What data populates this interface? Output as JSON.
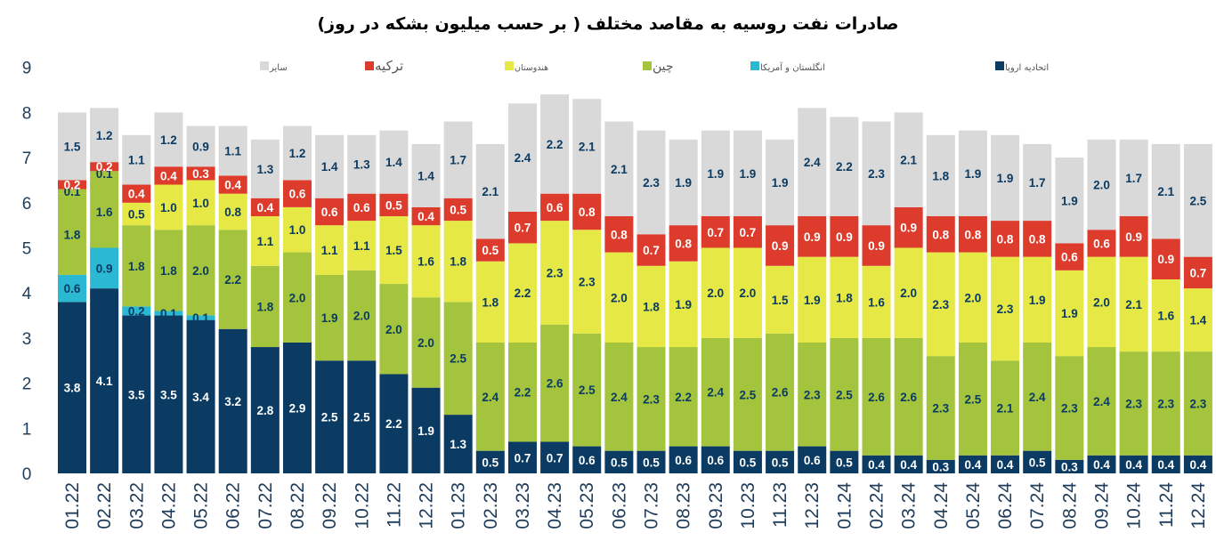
{
  "chart_data": {
    "type": "bar",
    "stacked": true,
    "title": "صادرات نفت روسیه به مقاصد مختلف ( بر حسب میلیون بشکه در روز)",
    "xlabel": "",
    "ylabel": "",
    "ylim": [
      0,
      9
    ],
    "yticks": [
      "0",
      "1",
      "2",
      "3",
      "4",
      "5",
      "6",
      "7",
      "8",
      "9"
    ],
    "grid": false,
    "legend_position": "top",
    "categories": [
      "01.22",
      "02.22",
      "03.22",
      "04.22",
      "05.22",
      "06.22",
      "07.22",
      "08.22",
      "09.22",
      "10.22",
      "11.22",
      "12.22",
      "01.23",
      "02.23",
      "03.23",
      "04.23",
      "05.23",
      "06.23",
      "07.23",
      "08.23",
      "09.23",
      "10.23",
      "11.23",
      "12.23",
      "01.24",
      "02.24",
      "03.24",
      "04.24",
      "05.24",
      "06.24",
      "07.24",
      "08.24",
      "09.24",
      "10.24",
      "11.24",
      "12.24"
    ],
    "series": [
      {
        "name": "اتحادیه اروپا",
        "color": "#0b3b63",
        "label_color": "#ffffff",
        "values": [
          3.8,
          4.1,
          3.5,
          3.5,
          3.4,
          3.2,
          2.8,
          2.9,
          2.5,
          2.5,
          2.2,
          1.9,
          1.3,
          0.5,
          0.7,
          0.7,
          0.6,
          0.5,
          0.5,
          0.6,
          0.6,
          0.5,
          0.5,
          0.6,
          0.5,
          0.4,
          0.4,
          0.3,
          0.4,
          0.4,
          0.5,
          0.3,
          0.4,
          0.4,
          0.4,
          0.4
        ]
      },
      {
        "name": "انگلستان و آمریکا",
        "color": "#2ab8d3",
        "label_color": "#0b3b63",
        "values": [
          0.6,
          0.9,
          0.2,
          0.1,
          0.1,
          0,
          0,
          0,
          0,
          0,
          0,
          0,
          0,
          0,
          0,
          0,
          0,
          0,
          0,
          0,
          0,
          0,
          0,
          0,
          0,
          0,
          0,
          0,
          0,
          0,
          0,
          0,
          0,
          0,
          0,
          0
        ]
      },
      {
        "name": "چین",
        "color": "#a3c43c",
        "label_color": "#0b3b63",
        "values": [
          1.8,
          1.6,
          1.8,
          1.8,
          2.0,
          2.2,
          1.8,
          2.0,
          1.9,
          2.0,
          2.0,
          2.0,
          2.5,
          2.4,
          2.2,
          2.6,
          2.5,
          2.4,
          2.3,
          2.2,
          2.4,
          2.5,
          2.6,
          2.3,
          2.5,
          2.6,
          2.6,
          2.3,
          2.5,
          2.1,
          2.4,
          2.3,
          2.4,
          2.3,
          2.3,
          2.3
        ]
      },
      {
        "name": "چین ",
        "color": "#a3c43c",
        "label_color": "#0b3b63",
        "values": [
          0.1,
          0.1,
          0,
          0,
          0,
          0,
          0,
          0,
          0,
          0,
          0,
          0,
          0,
          0,
          0,
          0,
          0,
          0,
          0,
          0,
          0,
          0,
          0,
          0,
          0,
          0,
          0,
          0,
          0,
          0,
          0,
          0,
          0,
          0,
          0,
          0
        ]
      },
      {
        "name": "هندوستان",
        "color": "#e6e845",
        "label_color": "#0b3b63",
        "values": [
          0,
          0,
          0.5,
          1.0,
          1.0,
          0.8,
          1.1,
          1.0,
          1.1,
          1.1,
          1.5,
          1.6,
          1.8,
          1.8,
          2.2,
          2.3,
          2.3,
          2.0,
          1.8,
          1.9,
          2.0,
          2.0,
          1.5,
          1.9,
          1.8,
          1.6,
          2.0,
          2.3,
          2.0,
          2.3,
          1.9,
          1.9,
          2.0,
          2.1,
          1.6,
          1.4
        ]
      },
      {
        "name": "ترکیه",
        "color": "#dd3b2c",
        "label_color": "#ffffff",
        "values": [
          0.2,
          0.2,
          0.4,
          0.4,
          0.3,
          0.4,
          0.4,
          0.6,
          0.6,
          0.6,
          0.5,
          0.4,
          0.5,
          0.5,
          0.7,
          0.6,
          0.8,
          0.8,
          0.7,
          0.8,
          0.7,
          0.7,
          0.9,
          0.9,
          0.9,
          0.9,
          0.9,
          0.8,
          0.8,
          0.8,
          0.8,
          0.6,
          0.6,
          0.9,
          0.9,
          0.7
        ]
      },
      {
        "name": "سایر",
        "color": "#d9d9d9",
        "label_color": "#0b3b63",
        "values": [
          1.5,
          1.2,
          1.1,
          1.2,
          0.9,
          1.1,
          1.3,
          1.2,
          1.4,
          1.3,
          1.4,
          1.4,
          1.7,
          2.1,
          2.4,
          2.2,
          2.1,
          2.1,
          2.3,
          1.9,
          1.9,
          1.9,
          1.9,
          2.4,
          2.2,
          2.3,
          2.1,
          1.8,
          1.9,
          1.9,
          1.7,
          1.9,
          2.0,
          1.7,
          2.1,
          2.5
        ]
      }
    ],
    "legend": [
      {
        "label": "اتحادیه اروپا",
        "color": "#0b3b63"
      },
      {
        "label": "انگلستان و آمریکا",
        "color": "#2ab8d3"
      },
      {
        "label": "چین",
        "color": "#a3c43c"
      },
      {
        "label": "هندوستان",
        "color": "#e6e845"
      },
      {
        "label": "ترکیه",
        "color": "#dd3b2c"
      },
      {
        "label": "سایر",
        "color": "#d9d9d9"
      }
    ]
  }
}
